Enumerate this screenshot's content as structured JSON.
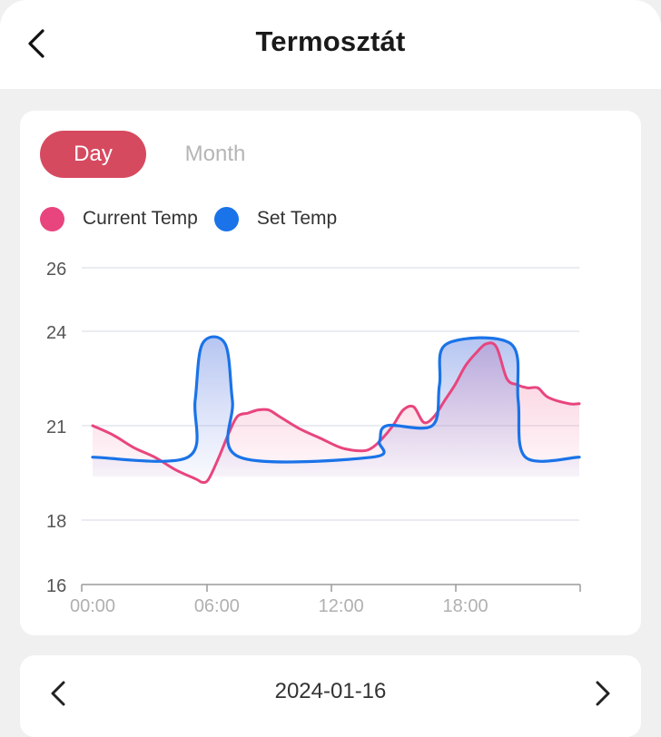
{
  "header": {
    "title": "Termosztát",
    "back_icon": "chevron-left-icon"
  },
  "tabs": [
    {
      "label": "Day",
      "active": true
    },
    {
      "label": "Month",
      "active": false
    }
  ],
  "colors": {
    "accent": "#d64a60",
    "current_temp": "#e8457e",
    "set_temp": "#1a73e8"
  },
  "chart_data": {
    "type": "area",
    "x_unit": "hours",
    "xlim": [
      0,
      23.5
    ],
    "ylim": [
      16,
      26
    ],
    "x_ticks": [
      "00:00",
      "06:00",
      "12:00",
      "18:00"
    ],
    "y_ticks": [
      "26",
      "24",
      "21",
      "18",
      "16"
    ],
    "grid": true,
    "legend_position": "top-left",
    "series": [
      {
        "name": "Current Temp",
        "color": "#e8457e",
        "x": [
          0,
          1,
          2,
          3,
          4,
          5,
          5.3,
          5.6,
          6.1,
          6.6,
          7,
          7.5,
          8,
          8.5,
          9,
          10,
          11,
          12,
          13,
          13.5,
          14,
          14.5,
          15,
          15.5,
          16,
          16.5,
          17,
          17.5,
          18,
          18.5,
          19,
          19.5,
          20,
          20.5,
          21,
          21.5,
          22,
          23,
          23.5
        ],
        "y": [
          21,
          20.7,
          20.3,
          20,
          19.6,
          19.3,
          19.2,
          19.3,
          20.0,
          20.8,
          21.3,
          21.4,
          21.5,
          21.5,
          21.3,
          20.9,
          20.6,
          20.3,
          20.2,
          20.3,
          20.6,
          21.0,
          21.5,
          21.6,
          21.1,
          21.3,
          21.8,
          22.3,
          22.9,
          23.3,
          23.6,
          23.5,
          22.5,
          22.3,
          22.2,
          22.2,
          21.9,
          21.7,
          21.7
        ]
      },
      {
        "name": "Set Temp",
        "color": "#1a73e8",
        "x": [
          0,
          4.6,
          4.95,
          5.3,
          6.4,
          6.75,
          7.1,
          13.5,
          13.85,
          14.2,
          16.4,
          16.75,
          17.1,
          20.2,
          20.55,
          20.9,
          23.5
        ],
        "y": [
          20,
          20,
          21.8,
          23.6,
          23.6,
          21.8,
          20,
          20,
          20.5,
          21,
          21,
          22.3,
          23.6,
          23.6,
          21.8,
          20,
          20
        ]
      }
    ]
  },
  "footer": {
    "date": "2024-01-16",
    "prev_icon": "chevron-left-icon",
    "next_icon": "chevron-right-icon"
  }
}
